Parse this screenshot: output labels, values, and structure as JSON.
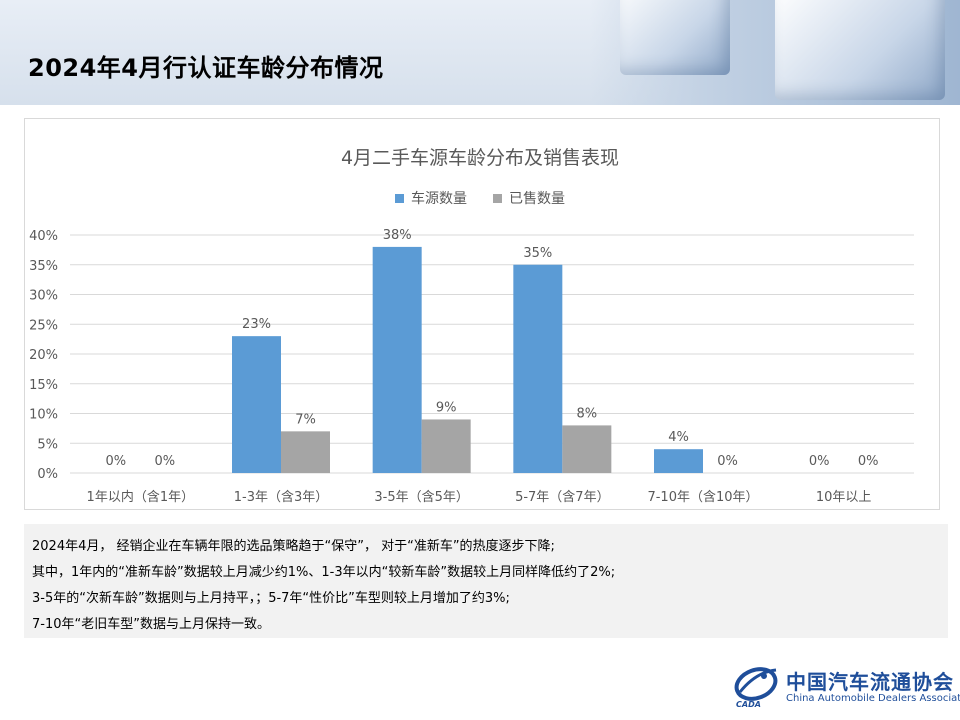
{
  "page": {
    "title": "2024年4月行认证车龄分布情况"
  },
  "chart_data": {
    "type": "bar",
    "title": "4月二手车源车龄分布及销售表现",
    "categories": [
      "1年以内（含1年）",
      "1-3年（含3年）",
      "3-5年（含5年）",
      "5-7年（含7年）",
      "7-10年（含10年）",
      "10年以上"
    ],
    "series": [
      {
        "name": "车源数量",
        "values": [
          0,
          23,
          38,
          35,
          4,
          0
        ],
        "labels": [
          "0%",
          "23%",
          "38%",
          "35%",
          "4%",
          "0%"
        ],
        "color": "#5b9bd5"
      },
      {
        "name": "已售数量",
        "values": [
          0,
          7,
          9,
          8,
          0,
          0
        ],
        "labels": [
          "0%",
          "7%",
          "9%",
          "8%",
          "0%",
          "0%"
        ],
        "color": "#a5a5a5"
      }
    ],
    "ylim": [
      0,
      40
    ],
    "yticks": [
      "0%",
      "5%",
      "10%",
      "15%",
      "20%",
      "25%",
      "30%",
      "35%",
      "40%"
    ],
    "ytick_values": [
      0,
      5,
      10,
      15,
      20,
      25,
      30,
      35,
      40
    ],
    "grid": true,
    "legend": "top-center",
    "unit": "%"
  },
  "notes": {
    "lines": [
      "2024年4月， 经销企业在车辆年限的选品策略趋于“保守”， 对于“准新车”的热度逐步下降;",
      "其中，1年内的“准新车龄”数据较上月减少约1%、1-3年以内“较新车龄”数据较上月同样降低约了2%;",
      "3-5年的“次新车龄”数据则与上月持平，；5-7年“性价比”车型则较上月增加了约3%;",
      "7-10年“老旧车型”数据与上月保持一致。"
    ]
  },
  "logo": {
    "name_cn": "中国汽车流通协会",
    "name_en": "China Automobile Dealers Association",
    "abbr": "CADA"
  },
  "colors": {
    "gridline": "#d9d9d9",
    "axis_text": "#595959",
    "brand": "#1f4e9a"
  }
}
